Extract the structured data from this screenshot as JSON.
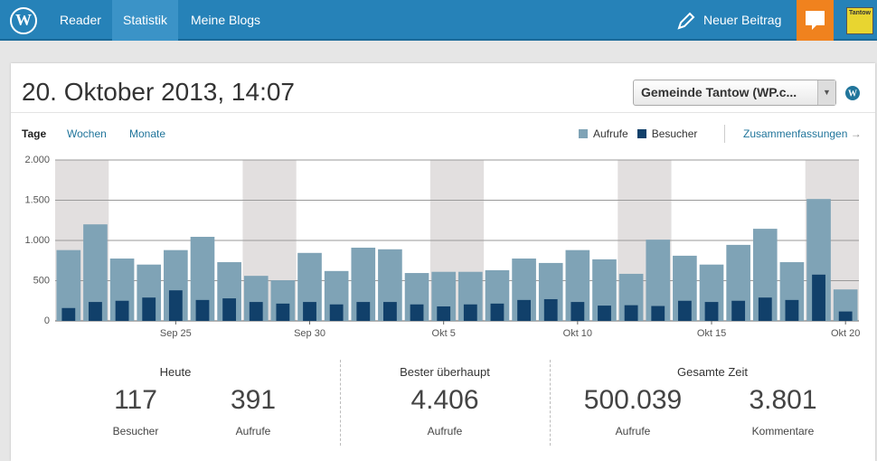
{
  "nav": {
    "items": [
      "Reader",
      "Statistik",
      "Meine Blogs"
    ],
    "new_post": "Neuer Beitrag",
    "avatar": "Tantow"
  },
  "header": {
    "title": "20. Oktober 2013, 14:07",
    "blog_select": "Gemeinde Tantow (WP.c..."
  },
  "tabs": [
    "Tage",
    "Wochen",
    "Monate"
  ],
  "summaries_link": "Zusammenfassungen",
  "chart_data": {
    "type": "bar",
    "grouping": "overlap",
    "categories": [
      null,
      null,
      null,
      null,
      "Sep 25",
      null,
      null,
      null,
      null,
      "Sep 30",
      null,
      null,
      null,
      null,
      "Okt 5",
      null,
      null,
      null,
      null,
      "Okt 10",
      null,
      null,
      null,
      null,
      "Okt 15",
      null,
      null,
      null,
      null,
      "Okt 20"
    ],
    "series": [
      {
        "name": "Aufrufe",
        "color": "#7fa3b6",
        "values": [
          880,
          1200,
          775,
          700,
          880,
          1045,
          730,
          560,
          505,
          845,
          620,
          910,
          890,
          595,
          610,
          610,
          630,
          775,
          720,
          880,
          765,
          585,
          1010,
          810,
          700,
          945,
          1145,
          730,
          1515,
          391
        ]
      },
      {
        "name": "Besucher",
        "color": "#11406a",
        "values": [
          160,
          235,
          250,
          290,
          380,
          260,
          280,
          235,
          215,
          235,
          205,
          235,
          235,
          205,
          180,
          205,
          215,
          260,
          270,
          235,
          190,
          195,
          185,
          250,
          235,
          250,
          290,
          260,
          575,
          117
        ]
      }
    ],
    "highlight_bands": [
      [
        0,
        1
      ],
      [
        7,
        8
      ],
      [
        14,
        15
      ],
      [
        21,
        22
      ],
      [
        28,
        29
      ]
    ],
    "ylim": [
      0,
      2000
    ],
    "yticks": [
      0,
      500,
      {
        "value": 1000,
        "label": "1.000"
      },
      {
        "value": 1500,
        "label": "1.500"
      },
      {
        "value": 2000,
        "label": "2.000"
      }
    ],
    "grid": true
  },
  "stats": [
    {
      "title": "Heute",
      "items": [
        {
          "value": "117",
          "label": "Besucher"
        },
        {
          "value": "391",
          "label": "Aufrufe"
        }
      ]
    },
    {
      "title": "Bester überhaupt",
      "items": [
        {
          "value": "4.406",
          "label": "Aufrufe"
        }
      ]
    },
    {
      "title": "Gesamte Zeit",
      "items": [
        {
          "value": "500.039",
          "label": "Aufrufe"
        },
        {
          "value": "3.801",
          "label": "Kommentare"
        }
      ]
    }
  ]
}
